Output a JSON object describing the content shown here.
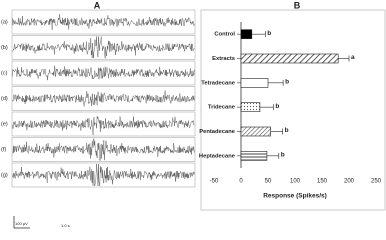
{
  "panel_a": {
    "label": "A",
    "traces": [
      "(a)",
      "(b)",
      "(c)",
      "(d)",
      "(e)",
      "(f)",
      "(g)"
    ],
    "scale_y": "100 µV",
    "scale_x": "1.0 s"
  },
  "chart_data": {
    "type": "bar",
    "orientation": "horizontal",
    "panel_label": "B",
    "categories": [
      "Control",
      "Extracts",
      "Tetradecane",
      "Tridecane",
      "Pentadecane",
      "Heptadecane"
    ],
    "values": [
      20,
      180,
      50,
      35,
      55,
      48
    ],
    "errors": [
      25,
      20,
      28,
      25,
      22,
      22
    ],
    "annotations": [
      "b",
      "a",
      "b",
      "b",
      "b",
      "b"
    ],
    "fills": [
      "#000000",
      "url(#hatch)",
      "#ffffff",
      "url(#dots)",
      "url(#hatch2)",
      "url(#stripes)"
    ],
    "xlabel": "Response (Spikes/s)",
    "xlim": [
      -50,
      250
    ],
    "xticks": [
      -50,
      0,
      50,
      100,
      150,
      200,
      250
    ],
    "grid": false
  }
}
